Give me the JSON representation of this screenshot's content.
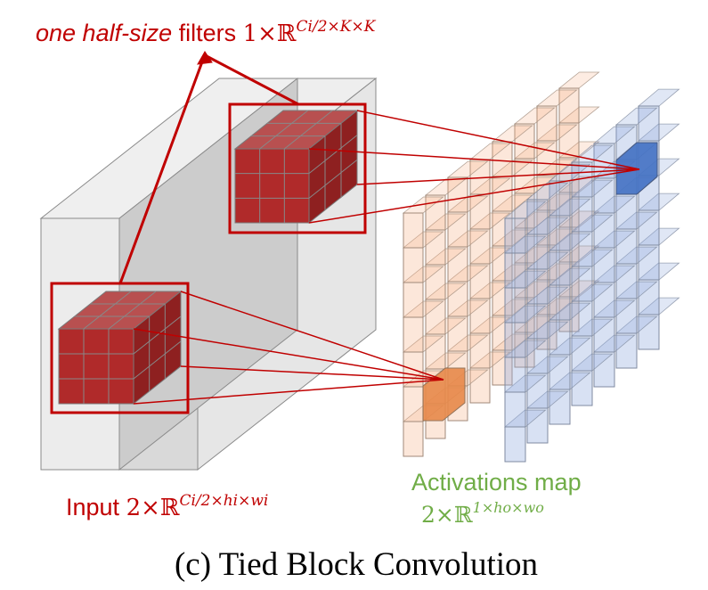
{
  "filters_label": {
    "italic": "one half-size",
    "normal": " filters ",
    "math_base": "1×ℝ",
    "math_sup": "Ci/2×K×K"
  },
  "input_label": {
    "text": "Input ",
    "math_base": "2×ℝ",
    "math_sup": "Ci/2×hi×wi"
  },
  "activations_label": {
    "text": "Activations map",
    "math_base": "2×ℝ",
    "math_sup": "1×ho×wo"
  },
  "caption": "(c) Tied Block Convolution",
  "colors": {
    "red": "#c00000",
    "green": "#70ad47",
    "orange": "#f4b183",
    "blue": "#8faadc"
  }
}
